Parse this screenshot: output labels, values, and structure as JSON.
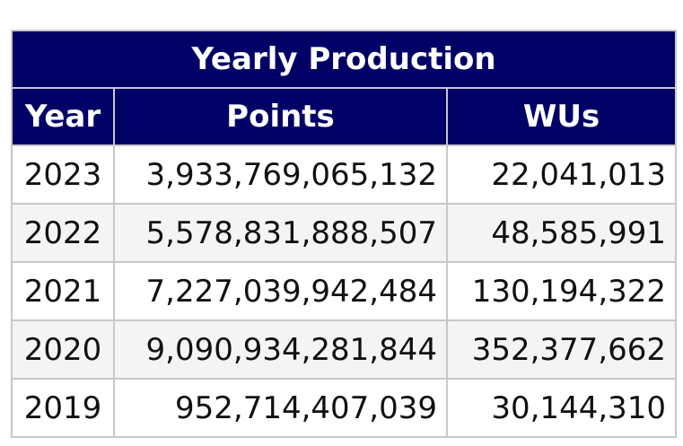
{
  "table": {
    "title": "Yearly Production",
    "columns": [
      "Year",
      "Points",
      "WUs"
    ],
    "rows": [
      {
        "year": "2023",
        "points": "3,933,769,065,132",
        "wus": "22,041,013"
      },
      {
        "year": "2022",
        "points": "5,578,831,888,507",
        "wus": "48,585,991"
      },
      {
        "year": "2021",
        "points": "7,227,039,942,484",
        "wus": "130,194,322"
      },
      {
        "year": "2020",
        "points": "9,090,934,281,844",
        "wus": "352,377,662"
      },
      {
        "year": "2019",
        "points": "952,714,407,039",
        "wus": "30,144,310"
      }
    ]
  }
}
